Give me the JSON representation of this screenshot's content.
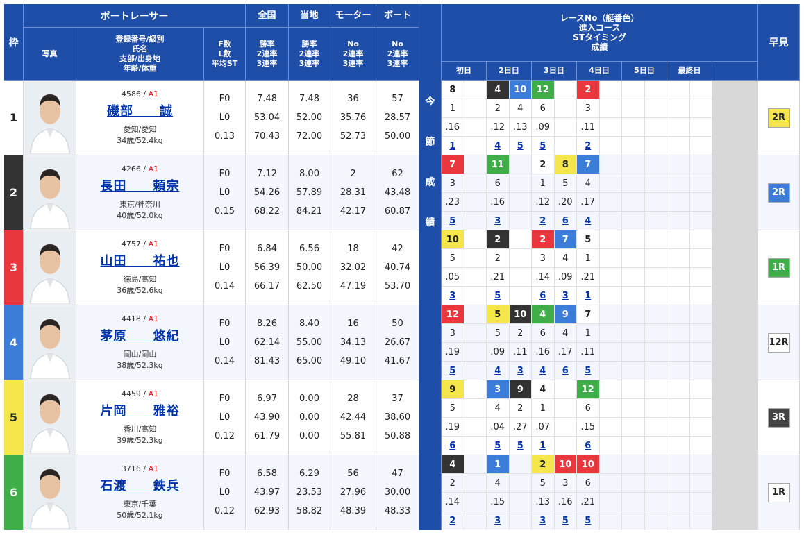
{
  "header": {
    "waku": "枠",
    "racer": "ボートレーサー",
    "photo": "写真",
    "info_lines": [
      "登録番号/級別",
      "氏名",
      "支部/出身地",
      "年齢/体重"
    ],
    "f_lines": [
      "F数",
      "L数",
      "平均ST"
    ],
    "zenkoku": "全国",
    "zenkoku_lines": [
      "勝率",
      "2連率",
      "3連率"
    ],
    "touchi": "当地",
    "touchi_lines": [
      "勝率",
      "2連率",
      "3連率"
    ],
    "motor": "モーター",
    "motor_lines": [
      "No",
      "2連率",
      "3連率"
    ],
    "boat": "ボート",
    "boat_lines": [
      "No",
      "2連率",
      "3連率"
    ],
    "race_lines": [
      "レースNo（艇番色）",
      "進入コース",
      "STタイミング",
      "成績"
    ],
    "days": [
      "初日",
      "2日目",
      "3日目",
      "4日目",
      "5日目",
      "最終日"
    ],
    "hayami": "早見",
    "konsetsu": [
      "今",
      "節",
      "成",
      "績"
    ]
  },
  "colors": {
    "waku": [
      "#ffffff",
      "#333333",
      "#e8383d",
      "#3b7dd8",
      "#f5e74b",
      "#3fae49"
    ],
    "header_blue": "#1f4ea8",
    "class_red": "#d9141b"
  },
  "racers": [
    {
      "waku": "1",
      "reg": "4586",
      "cls": "A1",
      "name": "磯部　　誠",
      "branch": "愛知/愛知",
      "age": "34歳/52.4kg",
      "f": "F0",
      "l": "L0",
      "st": "0.13",
      "z": [
        "7.48",
        "53.04",
        "70.43"
      ],
      "t": [
        "7.48",
        "52.00",
        "72.00"
      ],
      "m": [
        "36",
        "35.76",
        "52.73"
      ],
      "b": [
        "57",
        "28.57",
        "50.00"
      ],
      "hayami": "2R",
      "hayami_color": "yellow"
    },
    {
      "waku": "2",
      "reg": "4266",
      "cls": "A1",
      "name": "長田　　頼宗",
      "branch": "東京/神奈川",
      "age": "40歳/52.0kg",
      "f": "F0",
      "l": "L0",
      "st": "0.15",
      "z": [
        "7.12",
        "54.26",
        "68.22"
      ],
      "t": [
        "8.00",
        "57.89",
        "84.21"
      ],
      "m": [
        "2",
        "28.31",
        "42.17"
      ],
      "b": [
        "62",
        "43.48",
        "60.87"
      ],
      "hayami": "2R",
      "hayami_color": "blue"
    },
    {
      "waku": "3",
      "reg": "4757",
      "cls": "A1",
      "name": "山田　　祐也",
      "branch": "徳島/高知",
      "age": "36歳/52.6kg",
      "f": "F0",
      "l": "L0",
      "st": "0.14",
      "z": [
        "6.84",
        "56.39",
        "66.17"
      ],
      "t": [
        "6.56",
        "50.00",
        "62.50"
      ],
      "m": [
        "18",
        "32.02",
        "47.19"
      ],
      "b": [
        "42",
        "40.74",
        "53.70"
      ],
      "hayami": "1R",
      "hayami_color": "green"
    },
    {
      "waku": "4",
      "reg": "4418",
      "cls": "A1",
      "name": "茅原　　悠紀",
      "branch": "岡山/岡山",
      "age": "38歳/52.3kg",
      "f": "F0",
      "l": "L0",
      "st": "0.14",
      "z": [
        "8.26",
        "62.14",
        "81.43"
      ],
      "t": [
        "8.40",
        "55.00",
        "65.00"
      ],
      "m": [
        "16",
        "34.13",
        "49.10"
      ],
      "b": [
        "50",
        "26.67",
        "41.67"
      ],
      "hayami": "12R",
      "hayami_color": "white"
    },
    {
      "waku": "5",
      "reg": "4459",
      "cls": "A1",
      "name": "片岡　　雅裕",
      "branch": "香川/高知",
      "age": "39歳/52.3kg",
      "f": "F0",
      "l": "L0",
      "st": "0.12",
      "z": [
        "6.97",
        "43.90",
        "61.79"
      ],
      "t": [
        "0.00",
        "0.00",
        "0.00"
      ],
      "m": [
        "28",
        "42.44",
        "55.81"
      ],
      "b": [
        "37",
        "38.60",
        "50.88"
      ],
      "hayami": "3R",
      "hayami_color": "black"
    },
    {
      "waku": "6",
      "reg": "3716",
      "cls": "A1",
      "name": "石渡　　鉄兵",
      "branch": "東京/千葉",
      "age": "50歳/52.1kg",
      "f": "F0",
      "l": "L0",
      "st": "0.12",
      "z": [
        "6.58",
        "43.97",
        "62.93"
      ],
      "t": [
        "6.29",
        "23.53",
        "58.82"
      ],
      "m": [
        "56",
        "27.96",
        "48.39"
      ],
      "b": [
        "47",
        "30.00",
        "48.33"
      ],
      "hayami": "1R",
      "hayami_color": "white"
    }
  ],
  "results": [
    [
      {
        "no": "8",
        "c": "white",
        "course": "1",
        "st": ".16",
        "res": "1"
      },
      null,
      {
        "no": "4",
        "c": "black",
        "course": "2",
        "st": ".12",
        "res": "4"
      },
      {
        "no": "10",
        "c": "blue",
        "course": "4",
        "st": ".13",
        "res": "5"
      },
      {
        "no": "12",
        "c": "green",
        "course": "6",
        "st": ".09",
        "res": "5"
      },
      null,
      {
        "no": "2",
        "c": "red",
        "course": "3",
        "st": ".11",
        "res": "2"
      }
    ],
    [
      {
        "no": "7",
        "c": "red",
        "course": "3",
        "st": ".23",
        "res": "5"
      },
      null,
      {
        "no": "11",
        "c": "green",
        "course": "6",
        "st": ".16",
        "res": "3"
      },
      null,
      {
        "no": "2",
        "c": "white",
        "course": "1",
        "st": ".12",
        "res": "2"
      },
      {
        "no": "8",
        "c": "yellow",
        "course": "5",
        "st": ".20",
        "res": "6"
      },
      {
        "no": "7",
        "c": "blue",
        "course": "4",
        "st": ".17",
        "res": "4"
      }
    ],
    [
      {
        "no": "10",
        "c": "yellow",
        "course": "5",
        "st": ".05",
        "res": "3"
      },
      null,
      {
        "no": "2",
        "c": "black",
        "course": "2",
        "st": ".21",
        "res": "5"
      },
      null,
      {
        "no": "2",
        "c": "red",
        "course": "3",
        "st": ".14",
        "res": "6"
      },
      {
        "no": "7",
        "c": "blue",
        "course": "4",
        "st": ".09",
        "res": "3"
      },
      {
        "no": "5",
        "c": "white",
        "course": "1",
        "st": ".21",
        "res": "1"
      }
    ],
    [
      {
        "no": "12",
        "c": "red",
        "course": "3",
        "st": ".19",
        "res": "5"
      },
      null,
      {
        "no": "5",
        "c": "yellow",
        "course": "5",
        "st": ".09",
        "res": "4"
      },
      {
        "no": "10",
        "c": "black",
        "course": "2",
        "st": ".11",
        "res": "3"
      },
      {
        "no": "4",
        "c": "green",
        "course": "6",
        "st": ".16",
        "res": "4"
      },
      {
        "no": "9",
        "c": "blue",
        "course": "4",
        "st": ".17",
        "res": "6"
      },
      {
        "no": "7",
        "c": "white",
        "course": "1",
        "st": ".11",
        "res": "5"
      }
    ],
    [
      {
        "no": "9",
        "c": "yellow",
        "course": "5",
        "st": ".19",
        "res": "6"
      },
      null,
      {
        "no": "3",
        "c": "blue",
        "course": "4",
        "st": ".04",
        "res": "5"
      },
      {
        "no": "9",
        "c": "black",
        "course": "2",
        "st": ".27",
        "res": "5"
      },
      {
        "no": "4",
        "c": "white",
        "course": "1",
        "st": ".07",
        "res": "1"
      },
      null,
      {
        "no": "12",
        "c": "green",
        "course": "6",
        "st": ".15",
        "res": "6"
      }
    ],
    [
      {
        "no": "4",
        "c": "black",
        "course": "2",
        "st": ".14",
        "res": "2"
      },
      null,
      {
        "no": "1",
        "c": "blue",
        "course": "4",
        "st": ".15",
        "res": "3"
      },
      null,
      {
        "no": "2",
        "c": "yellow",
        "course": "5",
        "st": ".13",
        "res": "3"
      },
      {
        "no": "10",
        "c": "red",
        "course": "3",
        "st": ".16",
        "res": "5"
      },
      {
        "no": "10",
        "c": "red",
        "course": "6",
        "st": ".21",
        "res": "5"
      }
    ]
  ]
}
